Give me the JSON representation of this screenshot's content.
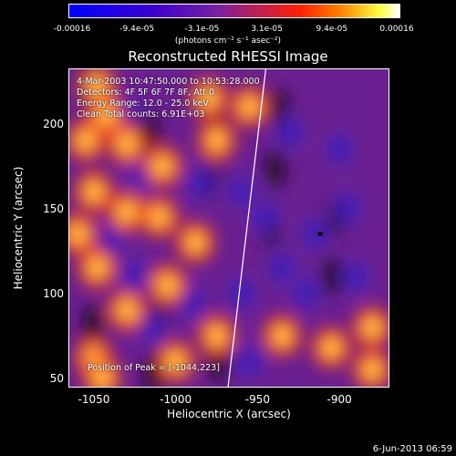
{
  "colorbar": {
    "tick_labels": [
      "-0.00016",
      "-9.4e-05",
      "-3.1e-05",
      "3.1e-05",
      "9.4e-05",
      "0.00016"
    ],
    "unit": "(photons cm⁻² s⁻¹ asec⁻²)",
    "range": [
      -0.00016,
      0.00016
    ]
  },
  "chart_data": {
    "type": "heatmap",
    "title": "Reconstructed RHESSI Image",
    "xlabel": "Heliocentric X (arcsec)",
    "ylabel": "Heliocentric Y (arcsec)",
    "xlim": [
      -1065,
      -870
    ],
    "ylim": [
      45,
      232
    ],
    "x_ticks": [
      -1050,
      -1000,
      -950,
      -900
    ],
    "y_ticks": [
      50,
      100,
      150,
      200
    ],
    "annotations": [
      "4-Mar-2003 10:47:50.000 to 10:53:28.000",
      "Detectors: 4F 5F 6F 7F 8F, Att 0",
      "Energy Range: 12.0 - 25.0 keV",
      "Clean     Total counts: 6.91E+03"
    ],
    "peak_text": "Position of Peak = [-1044,223]",
    "peak_position": [
      -1044,
      223
    ],
    "limb_line": [
      [
        -968,
        45
      ],
      [
        -945,
        232
      ]
    ],
    "blobs_bright": [
      [
        -1048,
        222
      ],
      [
        -1043,
        205
      ],
      [
        -1055,
        190
      ],
      [
        -1030,
        188
      ],
      [
        -1050,
        160
      ],
      [
        -1030,
        148
      ],
      [
        -1008,
        175
      ],
      [
        -1010,
        145
      ],
      [
        -988,
        130
      ],
      [
        -1005,
        105
      ],
      [
        -1048,
        115
      ],
      [
        -1030,
        90
      ],
      [
        -1050,
        62
      ],
      [
        -1045,
        50
      ],
      [
        -1000,
        60
      ],
      [
        -975,
        75
      ],
      [
        -975,
        190
      ],
      [
        -955,
        210
      ],
      [
        -980,
        215
      ],
      [
        -935,
        75
      ],
      [
        -905,
        68
      ],
      [
        -880,
        80
      ],
      [
        -880,
        55
      ],
      [
        -1060,
        135
      ]
    ],
    "blobs_dark": [
      [
        -1030,
        205
      ],
      [
        -1020,
        170
      ],
      [
        -1040,
        130
      ],
      [
        -1025,
        110
      ],
      [
        -1015,
        80
      ],
      [
        -990,
        95
      ],
      [
        -985,
        165
      ],
      [
        -960,
        160
      ],
      [
        -945,
        145
      ],
      [
        -935,
        115
      ],
      [
        -915,
        135
      ],
      [
        -920,
        100
      ],
      [
        -890,
        110
      ],
      [
        -895,
        150
      ],
      [
        -900,
        185
      ],
      [
        -930,
        195
      ],
      [
        -960,
        100
      ],
      [
        -955,
        60
      ]
    ]
  },
  "timestamp": "6-Jun-2013 06:59"
}
